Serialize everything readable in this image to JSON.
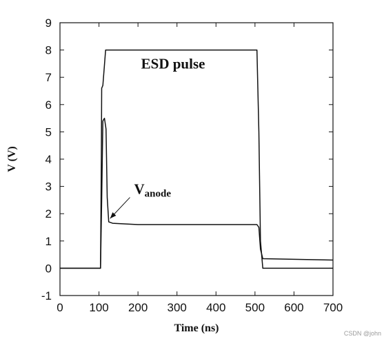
{
  "chart_data": {
    "type": "line",
    "title": "",
    "xlabel": "Time (ns)",
    "ylabel": "V (V)",
    "xlim": [
      0,
      700
    ],
    "ylim": [
      -1,
      9
    ],
    "xticks": [
      0,
      100,
      200,
      300,
      400,
      500,
      600,
      700
    ],
    "yticks": [
      -1,
      0,
      1,
      2,
      3,
      4,
      5,
      6,
      7,
      8,
      9
    ],
    "grid": false,
    "legend": "none",
    "series": [
      {
        "name": "ESD pulse",
        "color": "#111111",
        "x": [
          0,
          104,
          106,
          107,
          110,
          117,
          505,
          510,
          514,
          520,
          700
        ],
        "y": [
          0,
          0,
          4.0,
          6.6,
          6.7,
          8.0,
          8.0,
          5.0,
          1.0,
          0,
          0
        ]
      },
      {
        "name": "Vanode",
        "color": "#111111",
        "x": [
          0,
          104,
          107,
          110,
          114,
          118,
          121,
          125,
          135,
          200,
          400,
          505,
          510,
          514,
          520,
          700
        ],
        "y": [
          0,
          0,
          2.5,
          5.4,
          5.5,
          5.1,
          2.6,
          1.7,
          1.65,
          1.6,
          1.6,
          1.6,
          1.5,
          0.7,
          0.35,
          0.3
        ]
      }
    ],
    "annotations": [
      {
        "text": "ESD pulse",
        "x": 290,
        "y": 7.5
      },
      {
        "text_main": "V",
        "text_sub": "anode",
        "x": 190,
        "y": 2.9,
        "arrow_to_x": 125,
        "arrow_to_y": 1.75
      }
    ]
  },
  "watermark": "CSDN @john"
}
